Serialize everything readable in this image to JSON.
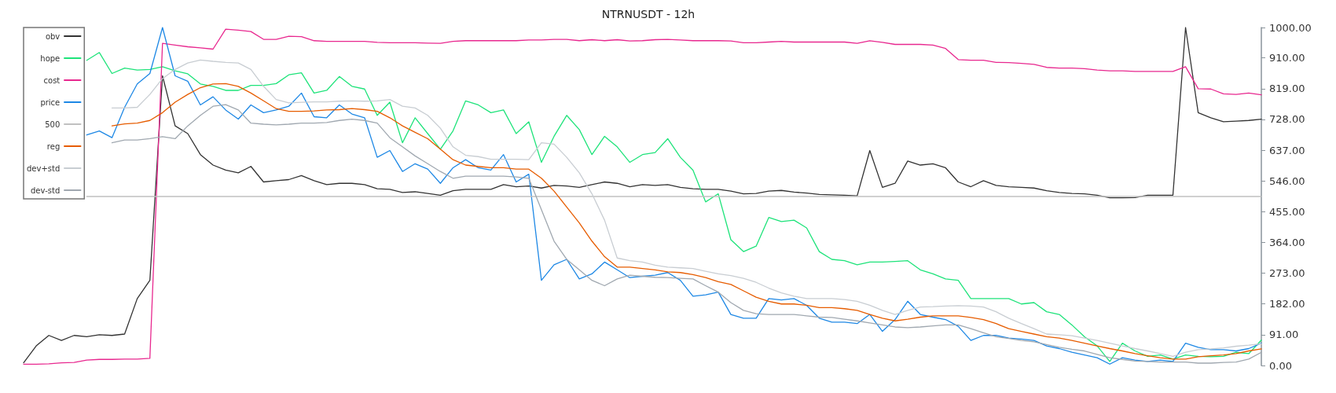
{
  "chart_data": {
    "type": "line",
    "title": "NTRNUSDT - 12h",
    "categories": [
      null,
      null,
      null,
      null,
      null,
      null,
      null,
      null,
      null,
      null,
      null,
      null,
      null,
      null,
      null,
      null,
      null,
      null,
      null,
      null,
      null,
      null,
      null,
      null,
      null,
      null,
      null,
      null,
      null,
      null,
      null,
      null,
      null,
      null,
      null,
      null,
      null,
      null,
      null,
      null,
      null,
      null,
      null,
      null,
      null,
      null,
      null,
      null,
      null,
      null,
      null,
      null,
      null,
      null,
      null,
      null,
      null,
      null,
      null,
      null,
      null,
      null,
      null,
      null,
      null,
      null,
      null,
      null,
      null,
      null,
      null,
      null,
      null,
      null,
      null,
      null,
      null,
      null,
      null,
      null,
      null,
      null,
      null,
      null,
      null,
      null,
      null,
      null,
      null,
      null,
      null,
      null,
      null,
      null,
      null,
      null,
      null,
      null,
      null
    ],
    "series": [
      {
        "name": "obv",
        "color": "#333333",
        "values": [
          8,
          58,
          89,
          74,
          89,
          85,
          91,
          89,
          93,
          198,
          252,
          857,
          709,
          686,
          624,
          593,
          578,
          570,
          589,
          543,
          547,
          550,
          562,
          547,
          535,
          539,
          539,
          535,
          523,
          521,
          512,
          514,
          509,
          504,
          517,
          521,
          521,
          521,
          535,
          529,
          531,
          525,
          533,
          531,
          527,
          535,
          543,
          539,
          529,
          535,
          533,
          535,
          527,
          523,
          521,
          521,
          516,
          508,
          509,
          516,
          518,
          513,
          510,
          506,
          505,
          504,
          502,
          636,
          527,
          539,
          605,
          593,
          597,
          585,
          543,
          529,
          547,
          533,
          529,
          527,
          525,
          517,
          512,
          509,
          508,
          504,
          496,
          496,
          497,
          504,
          504,
          504,
          1000,
          748,
          733,
          721,
          723,
          725,
          729
        ]
      },
      {
        "name": "hope",
        "color": "#1ee37a",
        "values": [
          null,
          null,
          null,
          null,
          null,
          903,
          926,
          864,
          880,
          874,
          876,
          884,
          872,
          863,
          833,
          826,
          814,
          814,
          829,
          829,
          834,
          860,
          866,
          806,
          814,
          855,
          826,
          818,
          740,
          779,
          659,
          733,
          686,
          640,
          694,
          783,
          771,
          748,
          756,
          686,
          721,
          601,
          678,
          740,
          698,
          624,
          678,
          647,
          601,
          624,
          630,
          671,
          616,
          578,
          484,
          508,
          372,
          337,
          353,
          438,
          426,
          430,
          407,
          337,
          314,
          310,
          298,
          306,
          306,
          308,
          310,
          283,
          271,
          256,
          252,
          198,
          198,
          198,
          198,
          182,
          186,
          159,
          151,
          120,
          85,
          58,
          12,
          66,
          43,
          27,
          31,
          19,
          31,
          27,
          26,
          27,
          39,
          35,
          75
        ]
      },
      {
        "name": "cost",
        "color": "#e8288f",
        "values": [
          4,
          4,
          5,
          8,
          9,
          16,
          18,
          18,
          19,
          19,
          21,
          953,
          948,
          943,
          940,
          936,
          995,
          992,
          988,
          965,
          965,
          974,
          973,
          961,
          959,
          959,
          959,
          959,
          956,
          955,
          955,
          955,
          954,
          953,
          959,
          961,
          961,
          961,
          961,
          961,
          963,
          963,
          965,
          965,
          961,
          964,
          961,
          964,
          960,
          961,
          964,
          965,
          963,
          961,
          961,
          961,
          960,
          955,
          955,
          957,
          959,
          957,
          957,
          957,
          957,
          957,
          953,
          961,
          956,
          950,
          950,
          950,
          948,
          938,
          905,
          903,
          903,
          897,
          896,
          894,
          891,
          882,
          880,
          880,
          878,
          874,
          872,
          872,
          870,
          870,
          870,
          870,
          884,
          819,
          818,
          804,
          802,
          806,
          801
        ]
      },
      {
        "name": "price",
        "color": "#1e88e5",
        "values": [
          null,
          null,
          null,
          null,
          null,
          682,
          694,
          674,
          764,
          833,
          864,
          1000,
          857,
          841,
          771,
          795,
          756,
          729,
          771,
          748,
          756,
          767,
          806,
          736,
          733,
          771,
          744,
          733,
          616,
          636,
          574,
          597,
          581,
          539,
          585,
          609,
          585,
          578,
          624,
          543,
          566,
          252,
          298,
          314,
          256,
          271,
          306,
          283,
          260,
          264,
          267,
          275,
          252,
          205,
          209,
          217,
          151,
          140,
          140,
          198,
          194,
          198,
          178,
          140,
          128,
          128,
          124,
          151,
          101,
          136,
          190,
          151,
          143,
          136,
          116,
          74,
          89,
          89,
          81,
          78,
          74,
          58,
          50,
          39,
          31,
          23,
          4,
          23,
          16,
          12,
          16,
          12,
          66,
          54,
          47,
          47,
          43,
          50,
          66
        ]
      },
      {
        "name": "500",
        "color": "#c0c0c0",
        "values": [
          null,
          null,
          null,
          null,
          null,
          500,
          500,
          500,
          500,
          500,
          500,
          500,
          500,
          500,
          500,
          500,
          500,
          500,
          500,
          500,
          500,
          500,
          500,
          500,
          500,
          500,
          500,
          500,
          500,
          500,
          500,
          500,
          500,
          500,
          500,
          500,
          500,
          500,
          500,
          500,
          500,
          500,
          500,
          500,
          500,
          500,
          500,
          500,
          500,
          500,
          500,
          500,
          500,
          500,
          500,
          500,
          500,
          500,
          500,
          500,
          500,
          500,
          500,
          500,
          500,
          500,
          500,
          500,
          500,
          500,
          500,
          500,
          500,
          500,
          500,
          500,
          500,
          500,
          500,
          500,
          500,
          500,
          500,
          500,
          500,
          500,
          500,
          500,
          500,
          500,
          500,
          500,
          500,
          500,
          500,
          500,
          500,
          500,
          500
        ]
      },
      {
        "name": "reg",
        "color": "#e65c00",
        "values": [
          null,
          null,
          null,
          null,
          null,
          null,
          null,
          709,
          715,
          717,
          725,
          748,
          779,
          802,
          822,
          833,
          834,
          826,
          806,
          783,
          760,
          752,
          752,
          753,
          756,
          757,
          760,
          757,
          752,
          733,
          709,
          690,
          671,
          640,
          609,
          593,
          589,
          585,
          585,
          581,
          581,
          554,
          516,
          469,
          422,
          368,
          322,
          291,
          291,
          287,
          283,
          277,
          275,
          269,
          260,
          248,
          240,
          221,
          202,
          190,
          182,
          182,
          178,
          171,
          171,
          168,
          163,
          151,
          140,
          132,
          137,
          143,
          147,
          147,
          147,
          142,
          136,
          124,
          109,
          101,
          93,
          85,
          81,
          74,
          66,
          58,
          50,
          43,
          35,
          29,
          23,
          19,
          19,
          26,
          29,
          31,
          35,
          43,
          49
        ]
      },
      {
        "name": "dev+std",
        "color": "#c8cdd2",
        "values": [
          null,
          null,
          null,
          null,
          null,
          null,
          null,
          762,
          762,
          764,
          802,
          849,
          876,
          895,
          904,
          900,
          897,
          895,
          876,
          826,
          787,
          777,
          779,
          780,
          780,
          782,
          783,
          782,
          783,
          787,
          767,
          762,
          740,
          702,
          647,
          622,
          618,
          610,
          610,
          610,
          609,
          659,
          655,
          616,
          570,
          508,
          430,
          318,
          310,
          306,
          297,
          291,
          289,
          287,
          279,
          271,
          266,
          258,
          246,
          229,
          215,
          205,
          198,
          198,
          198,
          195,
          190,
          178,
          163,
          151,
          163,
          173,
          174,
          176,
          177,
          176,
          173,
          159,
          140,
          124,
          109,
          93,
          91,
          88,
          81,
          74,
          66,
          58,
          50,
          43,
          35,
          27,
          39,
          47,
          49,
          52,
          57,
          60,
          64
        ]
      },
      {
        "name": "dev-std",
        "color": "#a0a8b0",
        "values": [
          null,
          null,
          null,
          null,
          null,
          null,
          null,
          659,
          667,
          667,
          671,
          677,
          671,
          709,
          740,
          767,
          772,
          756,
          717,
          714,
          712,
          714,
          717,
          717,
          719,
          725,
          729,
          725,
          717,
          674,
          647,
          620,
          597,
          574,
          554,
          560,
          560,
          560,
          560,
          558,
          554,
          461,
          368,
          314,
          283,
          252,
          236,
          256,
          267,
          264,
          261,
          260,
          258,
          256,
          236,
          217,
          186,
          163,
          153,
          151,
          151,
          151,
          147,
          143,
          142,
          137,
          132,
          126,
          120,
          114,
          112,
          114,
          117,
          120,
          120,
          109,
          97,
          85,
          80,
          74,
          70,
          62,
          54,
          48,
          43,
          33,
          23,
          18,
          13,
          12,
          10,
          10,
          10,
          7,
          7,
          9,
          10,
          19,
          39
        ]
      }
    ],
    "ylim": [
      0,
      1000
    ],
    "yticks": [
      {
        "value": 0,
        "label": "0.00"
      },
      {
        "value": 91,
        "label": "91.00"
      },
      {
        "value": 182,
        "label": "182.00"
      },
      {
        "value": 273,
        "label": "273.00"
      },
      {
        "value": 364,
        "label": "364.00"
      },
      {
        "value": 455,
        "label": "455.00"
      },
      {
        "value": 546,
        "label": "546.00"
      },
      {
        "value": 637,
        "label": "637.00"
      },
      {
        "value": 728,
        "label": "728.00"
      },
      {
        "value": 819,
        "label": "819.00"
      },
      {
        "value": 910,
        "label": "910.00"
      },
      {
        "value": 1000,
        "label": "1000.00"
      }
    ],
    "legend": "top left",
    "marker": "none",
    "line_style": "solid"
  }
}
